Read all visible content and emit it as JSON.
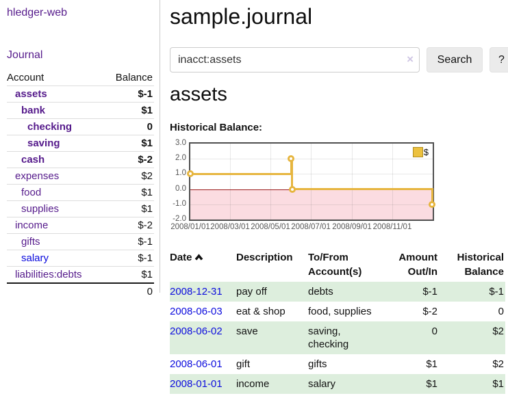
{
  "colors": {
    "link_purple": "#551a8b",
    "link_blue": "#0b0bdd",
    "negative_strong": "#9e1b1b",
    "negative_soft": "#c5717d",
    "row_green": "#ddeedd",
    "series_gold": "#e6b53e",
    "negative_region_pink": "#fbdce1",
    "zero_line_red": "#9b1c1c"
  },
  "brand": "hledger-web",
  "nav": {
    "journal": "Journal"
  },
  "sidebar": {
    "columns": {
      "account": "Account",
      "balance": "Balance"
    },
    "rows": [
      {
        "account": "assets",
        "balance": "$-1"
      },
      {
        "account": "bank",
        "balance": "$1"
      },
      {
        "account": "checking",
        "balance": "0"
      },
      {
        "account": "saving",
        "balance": "$1"
      },
      {
        "account": "cash",
        "balance": "$-2"
      },
      {
        "account": "expenses",
        "balance": "$2"
      },
      {
        "account": "food",
        "balance": "$1"
      },
      {
        "account": "supplies",
        "balance": "$1"
      },
      {
        "account": "income",
        "balance": "$-2"
      },
      {
        "account": "gifts",
        "balance": "$-1"
      },
      {
        "account": "salary",
        "balance": "$-1"
      },
      {
        "account": "liabilities:debts",
        "balance": "$1"
      }
    ],
    "total": "0"
  },
  "main": {
    "title": "sample.journal",
    "search": {
      "value": "inacct:assets",
      "clear": "×",
      "button": "Search",
      "help": "?"
    },
    "heading": "assets",
    "chart_title": "Historical Balance:"
  },
  "chart_data": {
    "type": "line",
    "title": "Historical Balance of assets",
    "series": [
      {
        "name": "$",
        "step": true,
        "points": [
          [
            "2008-01-01",
            1.0
          ],
          [
            "2008-06-01",
            2.0
          ],
          [
            "2008-06-03",
            0.0
          ],
          [
            "2008-12-31",
            -1.0
          ]
        ]
      }
    ],
    "x_domain": [
      "2008-01-01",
      "2009-01-01"
    ],
    "ylim": [
      -2.0,
      3.0
    ],
    "yticks": [
      3.0,
      2.0,
      1.0,
      0.0,
      -1.0,
      -2.0
    ],
    "ytick_labels": [
      "3.0",
      "2.0",
      "1.0",
      "0.0",
      "-1.0",
      "-2.0"
    ],
    "xticks": [
      {
        "date": "2008-01-01",
        "label": "2008/01/01"
      },
      {
        "date": "2008-03-01",
        "label": "2008/03/01"
      },
      {
        "date": "2008-05-01",
        "label": "2008/05/01"
      },
      {
        "date": "2008-07-01",
        "label": "2008/07/01"
      },
      {
        "date": "2008-09-01",
        "label": "2008/09/01"
      },
      {
        "date": "2008-11-01",
        "label": "2008/11/01"
      }
    ],
    "legend": {
      "label": "$",
      "position": "top-right"
    },
    "grid": true,
    "zero_line": true,
    "negative_region_shaded": true
  },
  "register": {
    "columns": [
      "Date",
      "Description",
      "To/From Account(s)",
      "Amount Out/In",
      "Historical Balance"
    ],
    "sort": {
      "column": "Date",
      "direction": "asc"
    },
    "rows": [
      {
        "date": "2008-12-31",
        "description": "pay off",
        "accounts": "debts",
        "amount": "$-1",
        "balance": "$-1"
      },
      {
        "date": "2008-06-03",
        "description": "eat & shop",
        "accounts": "food, supplies",
        "amount": "$-2",
        "balance": "0"
      },
      {
        "date": "2008-06-02",
        "description": "save",
        "accounts": "saving, checking",
        "amount": "0",
        "balance": "$2"
      },
      {
        "date": "2008-06-01",
        "description": "gift",
        "accounts": "gifts",
        "amount": "$1",
        "balance": "$2"
      },
      {
        "date": "2008-01-01",
        "description": "income",
        "accounts": "salary",
        "amount": "$1",
        "balance": "$1"
      }
    ]
  }
}
